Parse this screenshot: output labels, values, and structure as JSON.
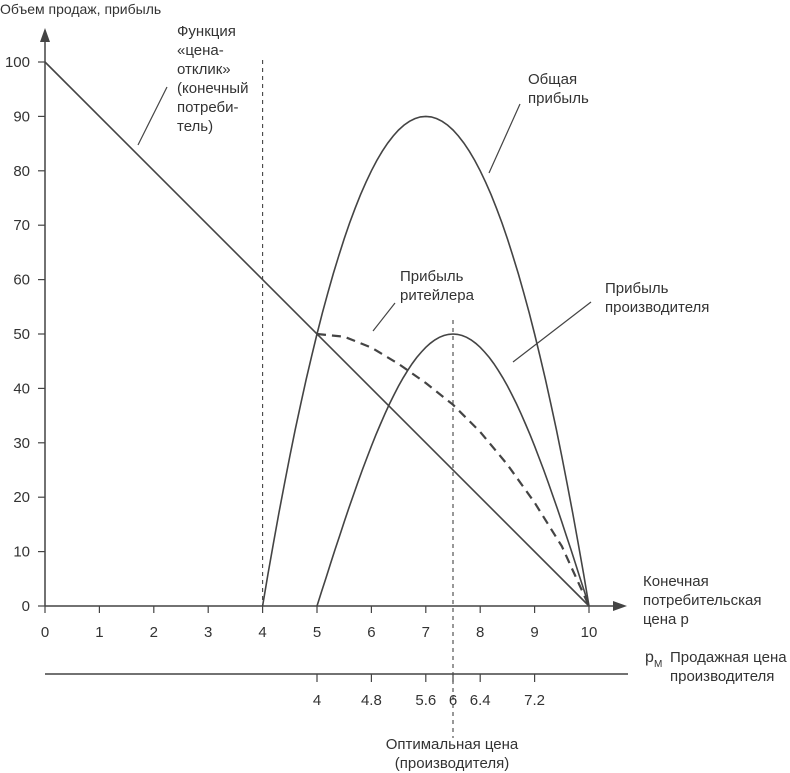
{
  "chart_data": {
    "type": "line",
    "ylabel": "Объем продаж, прибыль",
    "xlabel_lines": [
      "Конечная",
      "потребительская",
      "цена p"
    ],
    "x_ticks": [
      "0",
      "1",
      "2",
      "3",
      "4",
      "5",
      "6",
      "7",
      "8",
      "9",
      "10"
    ],
    "y_ticks": [
      "0",
      "10",
      "20",
      "30",
      "40",
      "50",
      "60",
      "70",
      "80",
      "90",
      "100"
    ],
    "xlim": [
      0,
      10
    ],
    "ylim": [
      0,
      100
    ],
    "series": [
      {
        "name": "price_response",
        "style": "solid",
        "x": [
          0,
          10
        ],
        "y": [
          100,
          0
        ]
      },
      {
        "name": "total_profit",
        "style": "solid",
        "x": [
          4,
          4.5,
          5,
          5.5,
          6,
          6.5,
          7,
          7.5,
          8,
          8.5,
          9,
          9.5,
          10
        ],
        "y": [
          0,
          27.5,
          50,
          67.5,
          80,
          87.5,
          90,
          87.5,
          80,
          67.5,
          50,
          27.5,
          0
        ]
      },
      {
        "name": "manufacturer_profit",
        "style": "solid",
        "x": [
          5,
          5.5,
          6,
          6.5,
          7,
          7.5,
          8,
          8.5,
          9,
          9.5,
          10
        ],
        "y": [
          0,
          22.2,
          36.5,
          45.2,
          49.1,
          50,
          49.1,
          45.2,
          36.5,
          22.2,
          0
        ]
      },
      {
        "name": "retailer_profit",
        "style": "dashed",
        "x": [
          5,
          5.5,
          6,
          6.5,
          7,
          7.5,
          8,
          8.5,
          9,
          9.5,
          10
        ],
        "y": [
          50,
          49.5,
          47.5,
          44.5,
          41,
          37,
          32,
          26,
          19,
          11,
          0
        ]
      }
    ],
    "annotations": {
      "price_response": [
        "Функция",
        "«цена-",
        "отклик»",
        "(конечный",
        "потреби-",
        "тель)"
      ],
      "total_profit": [
        "Общая",
        "прибыль"
      ],
      "retailer_profit": [
        "Прибыль",
        "ритейлера"
      ],
      "manufacturer_profit": [
        "Прибыль",
        "производителя"
      ]
    },
    "vertical_lines": [
      4,
      7.5
    ],
    "secondary_axis": {
      "symbol": "p",
      "symbol_sub": "M",
      "label_lines": [
        "Продажная цена",
        "производителя"
      ],
      "ticks": [
        {
          "at": 5,
          "label": "4"
        },
        {
          "at": 6,
          "label": "4.8"
        },
        {
          "at": 7,
          "label": "5.6"
        },
        {
          "at": 7.5,
          "label": "6"
        },
        {
          "at": 8,
          "label": "6.4"
        },
        {
          "at": 9,
          "label": "7.2"
        }
      ]
    },
    "optimal_label_lines": [
      "Оптимальная цена",
      "(производителя)"
    ]
  }
}
